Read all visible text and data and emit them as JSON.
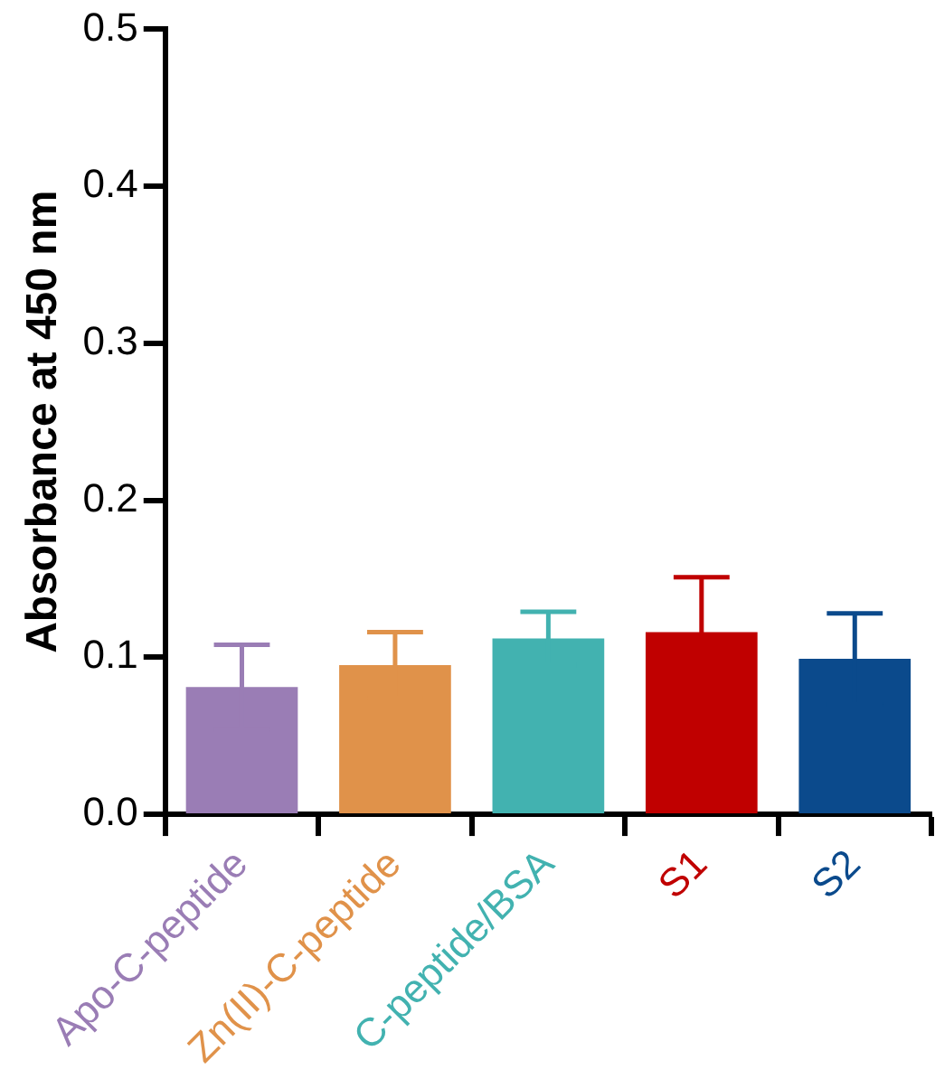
{
  "chart_data": {
    "type": "bar",
    "ylabel": "Absorbance at 450 nm",
    "categories": [
      "Apo-C-peptide",
      "Zn(II)-C-peptide",
      "C-peptide/BSA",
      "S1",
      "S2"
    ],
    "values": [
      0.081,
      0.095,
      0.112,
      0.116,
      0.099
    ],
    "errors": [
      0.027,
      0.021,
      0.017,
      0.035,
      0.029
    ],
    "colors": [
      "#9a7db5",
      "#e0924a",
      "#42b2b0",
      "#c00000",
      "#0b4a8c"
    ],
    "ylim": [
      0,
      0.5
    ],
    "yticks": [
      {
        "value": 0,
        "label": "0.0"
      },
      {
        "value": 0.1,
        "label": "0.1"
      },
      {
        "value": 0.2,
        "label": "0.2"
      },
      {
        "value": 0.3,
        "label": "0.3"
      },
      {
        "value": 0.4,
        "label": "0.4"
      },
      {
        "value": 0.5,
        "label": "0.5"
      }
    ],
    "grid": false,
    "legend": false
  }
}
